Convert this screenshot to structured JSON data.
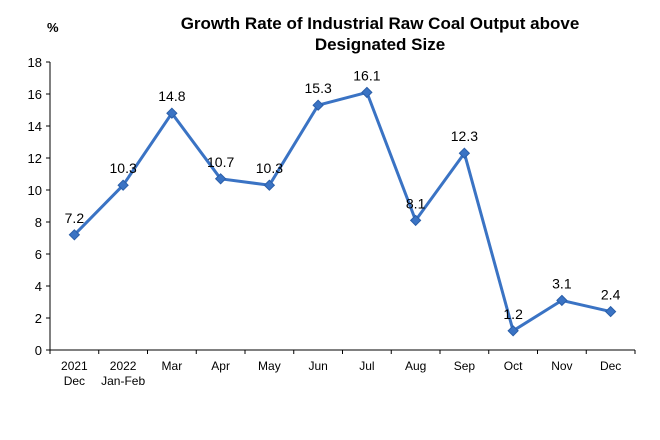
{
  "chart_data": {
    "type": "line",
    "title_lines": [
      "Growth Rate of Industrial Raw Coal Output above",
      "Designated Size"
    ],
    "y_unit": "%",
    "ylim": [
      0,
      18
    ],
    "yticks": [
      0,
      2,
      4,
      6,
      8,
      10,
      12,
      14,
      16,
      18
    ],
    "categories": [
      [
        "2021",
        "Dec"
      ],
      [
        "2022",
        "Jan-Feb"
      ],
      [
        "Mar"
      ],
      [
        "Apr"
      ],
      [
        "May"
      ],
      [
        "Jun"
      ],
      [
        "Jul"
      ],
      [
        "Aug"
      ],
      [
        "Sep"
      ],
      [
        "Oct"
      ],
      [
        "Nov"
      ],
      [
        "Dec"
      ]
    ],
    "series": [
      {
        "values": [
          7.2,
          10.3,
          14.8,
          10.7,
          10.3,
          15.3,
          16.1,
          8.1,
          12.3,
          1.2,
          3.1,
          2.4
        ],
        "color": "#3a73c4"
      }
    ],
    "data_labels": [
      "7.2",
      "10.3",
      "14.8",
      "10.7",
      "10.3",
      "15.3",
      "16.1",
      "8.1",
      "12.3",
      "1.2",
      "3.1",
      "2.4"
    ],
    "grid": false,
    "legend": "none"
  }
}
